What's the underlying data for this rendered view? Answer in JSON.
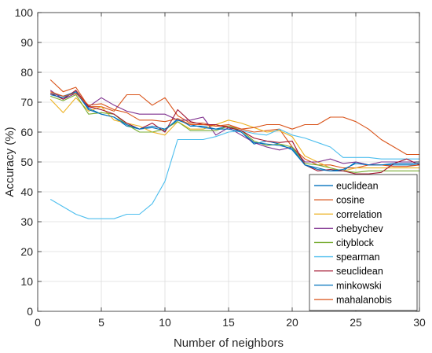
{
  "chart_data": {
    "type": "line",
    "title": "",
    "xlabel": "Number of neighbors",
    "ylabel": "Accuracy (%)",
    "xlim": [
      0,
      30
    ],
    "ylim": [
      0,
      100
    ],
    "xticks": [
      0,
      5,
      10,
      15,
      20,
      25,
      30
    ],
    "yticks": [
      0,
      10,
      20,
      30,
      40,
      50,
      60,
      70,
      80,
      90,
      100
    ],
    "grid": true,
    "legend_position": "lower-right",
    "x": [
      1,
      2,
      3,
      4,
      5,
      6,
      7,
      8,
      9,
      10,
      11,
      12,
      13,
      14,
      15,
      16,
      17,
      18,
      19,
      20,
      21,
      22,
      23,
      24,
      25,
      26,
      27,
      28,
      29,
      30
    ],
    "series": [
      {
        "name": "euclidean",
        "color": "#0072BD",
        "values": [
          73,
          72,
          73.5,
          68,
          66,
          65,
          62,
          61,
          61.5,
          60.5,
          64.5,
          62,
          62,
          61,
          62,
          60,
          56,
          57,
          56,
          54,
          49,
          48,
          47,
          47,
          50,
          49,
          49,
          49,
          49,
          49
        ]
      },
      {
        "name": "cosine",
        "color": "#D95319",
        "values": [
          77.5,
          73.5,
          75,
          68.5,
          68.5,
          67,
          72.5,
          72.5,
          69,
          71.5,
          65.5,
          63,
          63,
          62,
          62,
          61,
          60,
          60.5,
          61,
          55,
          51,
          49,
          49,
          48,
          48,
          49,
          49,
          48.5,
          48.5,
          49
        ]
      },
      {
        "name": "correlation",
        "color": "#EDB120",
        "values": [
          71,
          66.5,
          71.5,
          67,
          68.5,
          64,
          63,
          62,
          60,
          59,
          63.5,
          61,
          61,
          62.5,
          64,
          63,
          61.5,
          60,
          60.5,
          58.5,
          52,
          50,
          48,
          47,
          48,
          48,
          48,
          48,
          48,
          48
        ]
      },
      {
        "name": "chebychev",
        "color": "#7E2F8E",
        "values": [
          74,
          71,
          73,
          68.5,
          71.5,
          69,
          67,
          66,
          66,
          66,
          64,
          64,
          65,
          59,
          61.5,
          59,
          56.5,
          55,
          54,
          55,
          50,
          50,
          51,
          49.5,
          50,
          49,
          50,
          50,
          50,
          50
        ]
      },
      {
        "name": "cityblock",
        "color": "#77AC30",
        "values": [
          72,
          70.5,
          72.5,
          66,
          66.5,
          66,
          62.5,
          60,
          60,
          61,
          63.5,
          60.5,
          60.5,
          60.5,
          62,
          60.5,
          57,
          55.5,
          56,
          55,
          49.5,
          49,
          48,
          47,
          46.5,
          47,
          47,
          47,
          47,
          47
        ]
      },
      {
        "name": "spearman",
        "color": "#4DBEEE",
        "values": [
          37.5,
          35,
          32.5,
          31,
          31,
          31,
          32.5,
          32.5,
          36,
          43.5,
          57.5,
          57.5,
          57.5,
          58.5,
          60,
          60.5,
          59.5,
          59,
          61,
          59,
          58,
          56.5,
          55,
          51.5,
          51.5,
          51.5,
          51,
          51,
          51,
          51
        ]
      },
      {
        "name": "seuclidean",
        "color": "#A2142F",
        "values": [
          73,
          71,
          74,
          68.5,
          67.5,
          66,
          63,
          61,
          63,
          60,
          67.5,
          63.5,
          62.5,
          62.5,
          61.5,
          60.5,
          58,
          57,
          56.5,
          57,
          49,
          47,
          47.5,
          47,
          46,
          46,
          46.5,
          49.5,
          51,
          49
        ]
      },
      {
        "name": "minkowski",
        "color": "#0072BD",
        "values": [
          72.5,
          71.5,
          73.5,
          67.5,
          66,
          65,
          62.5,
          61,
          62,
          61,
          64,
          62.5,
          61.5,
          61,
          61,
          60,
          56.5,
          56,
          55.5,
          54.5,
          49,
          47.5,
          47,
          47.5,
          49.5,
          49,
          49,
          49.5,
          49.5,
          49.5
        ]
      },
      {
        "name": "mahalanobis",
        "color": "#D95319",
        "values": [
          73.5,
          72,
          73,
          69,
          69.5,
          67.5,
          66.5,
          64,
          64,
          63.5,
          64.5,
          62.5,
          62.5,
          62,
          62.5,
          61,
          61.5,
          62.5,
          62.5,
          61,
          62.5,
          62.5,
          65,
          65,
          63.5,
          61,
          57.5,
          55,
          52.5,
          52.5
        ]
      }
    ]
  }
}
